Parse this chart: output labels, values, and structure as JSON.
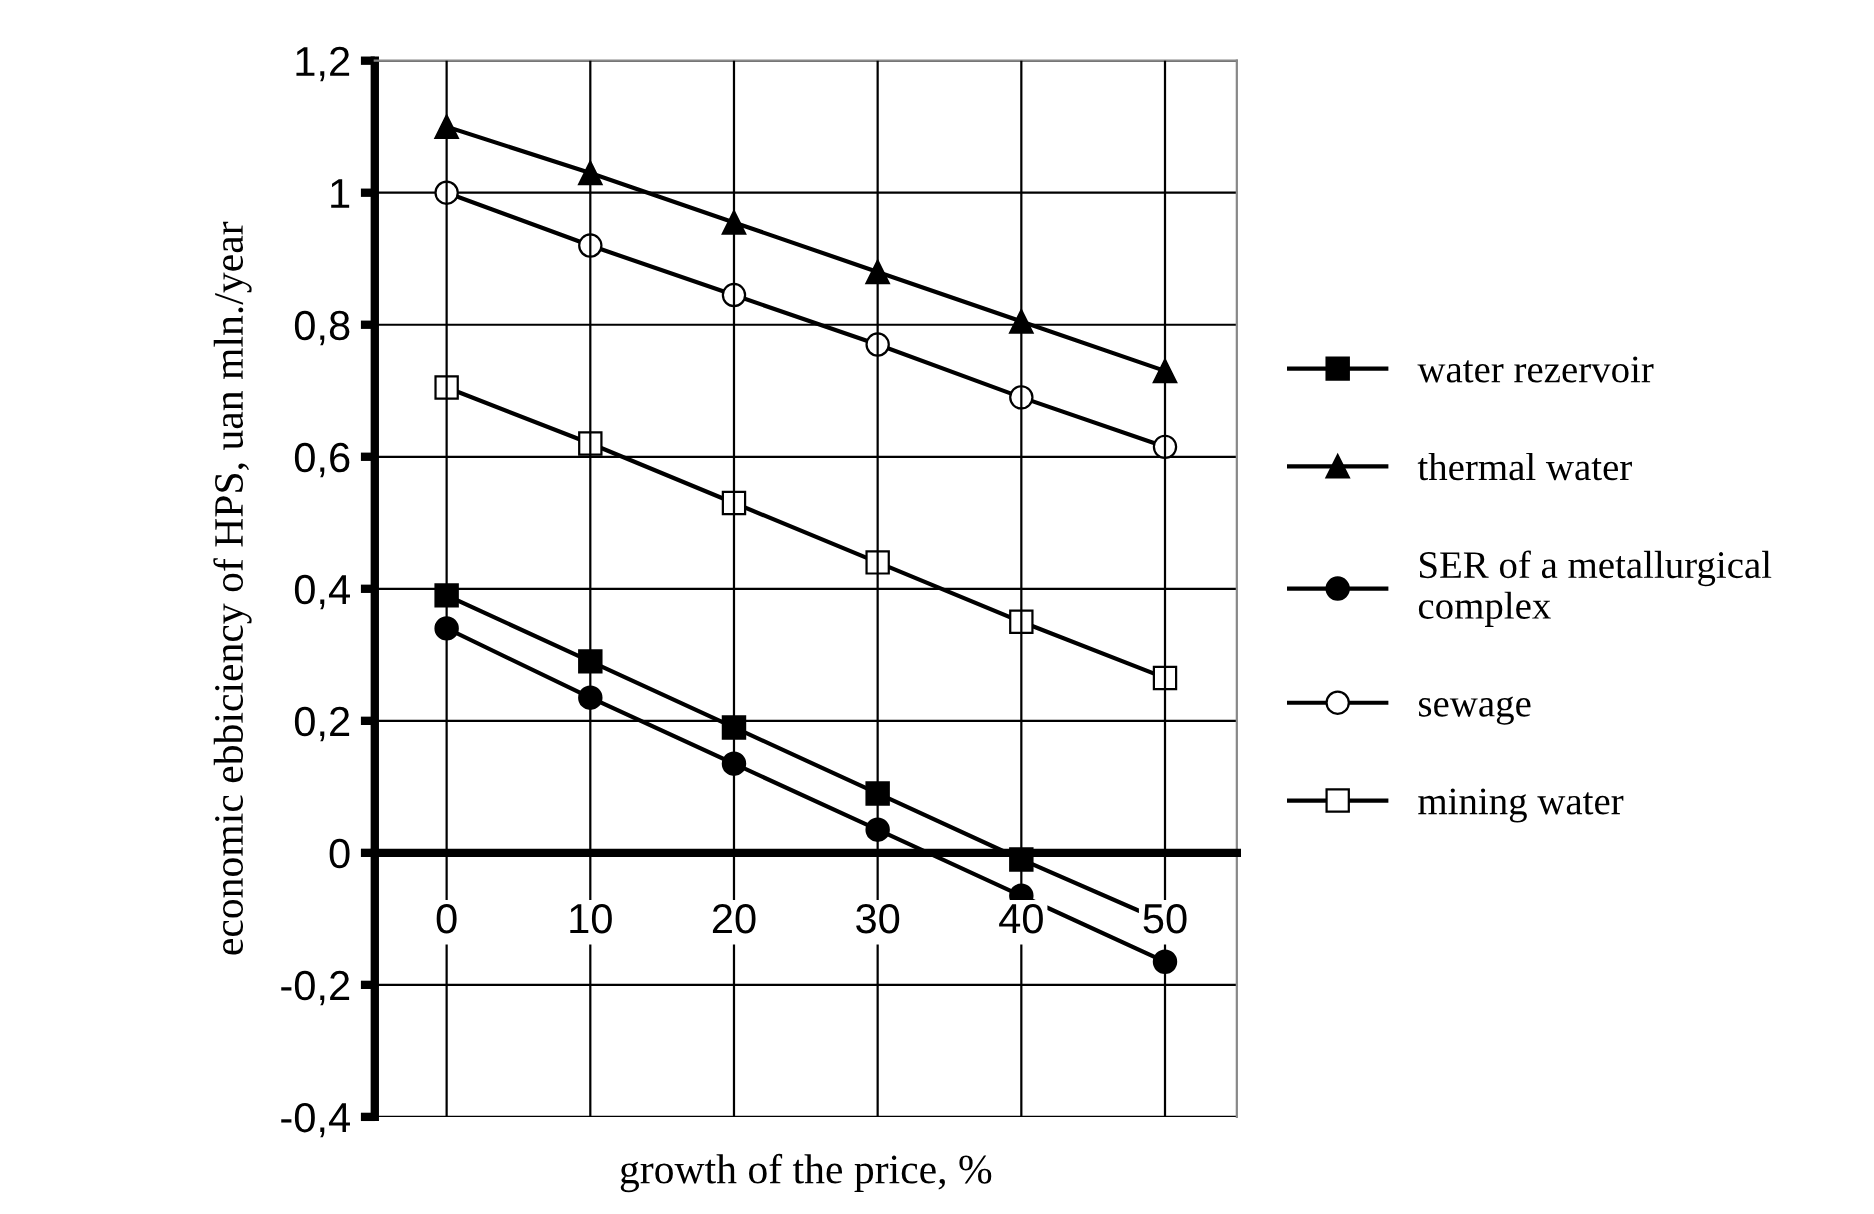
{
  "chart_data": {
    "type": "line",
    "xlabel": "growth of the price, %",
    "ylabel": "economic ebbiciency of HPS, uan mln./year",
    "categories": [
      "0",
      "10",
      "20",
      "30",
      "40",
      "50"
    ],
    "series": [
      {
        "name": "water rezervoir",
        "color": "#000000",
        "marker": "square",
        "values": [
          0.39,
          0.29,
          0.19,
          0.09,
          -0.01,
          -0.105
        ]
      },
      {
        "name": "thermal water",
        "color": "#000000",
        "marker": "triangle",
        "values": [
          1.1,
          1.03,
          0.955,
          0.88,
          0.805,
          0.73
        ]
      },
      {
        "name": "SER of a metallurgical\ncomplex",
        "color": "#000000",
        "marker": "circle",
        "values": [
          0.34,
          0.235,
          0.135,
          0.035,
          -0.065,
          -0.165
        ]
      },
      {
        "name": "sewage",
        "color": "#000000",
        "marker": "circle",
        "values": [
          1.0,
          0.92,
          0.845,
          0.77,
          0.69,
          0.615
        ]
      },
      {
        "name": "mining water",
        "color": "#000000",
        "marker": "square",
        "values": [
          0.705,
          0.62,
          0.53,
          0.44,
          0.35,
          0.265
        ]
      }
    ],
    "ylim": [
      -0.4,
      1.2
    ],
    "yticks": [
      {
        "value": -0.4,
        "label": "-0,4"
      },
      {
        "value": -0.2,
        "label": "-0,2"
      },
      {
        "value": 0,
        "label": "0"
      },
      {
        "value": 0.2,
        "label": "0,2"
      },
      {
        "value": 0.4,
        "label": "0,4"
      },
      {
        "value": 0.6,
        "label": "0,6"
      },
      {
        "value": 0.8,
        "label": "0,8"
      },
      {
        "value": 1,
        "label": "1"
      },
      {
        "value": 1.2,
        "label": "1,2"
      }
    ],
    "grid": true,
    "legend": "right",
    "line_style": "solid"
  }
}
